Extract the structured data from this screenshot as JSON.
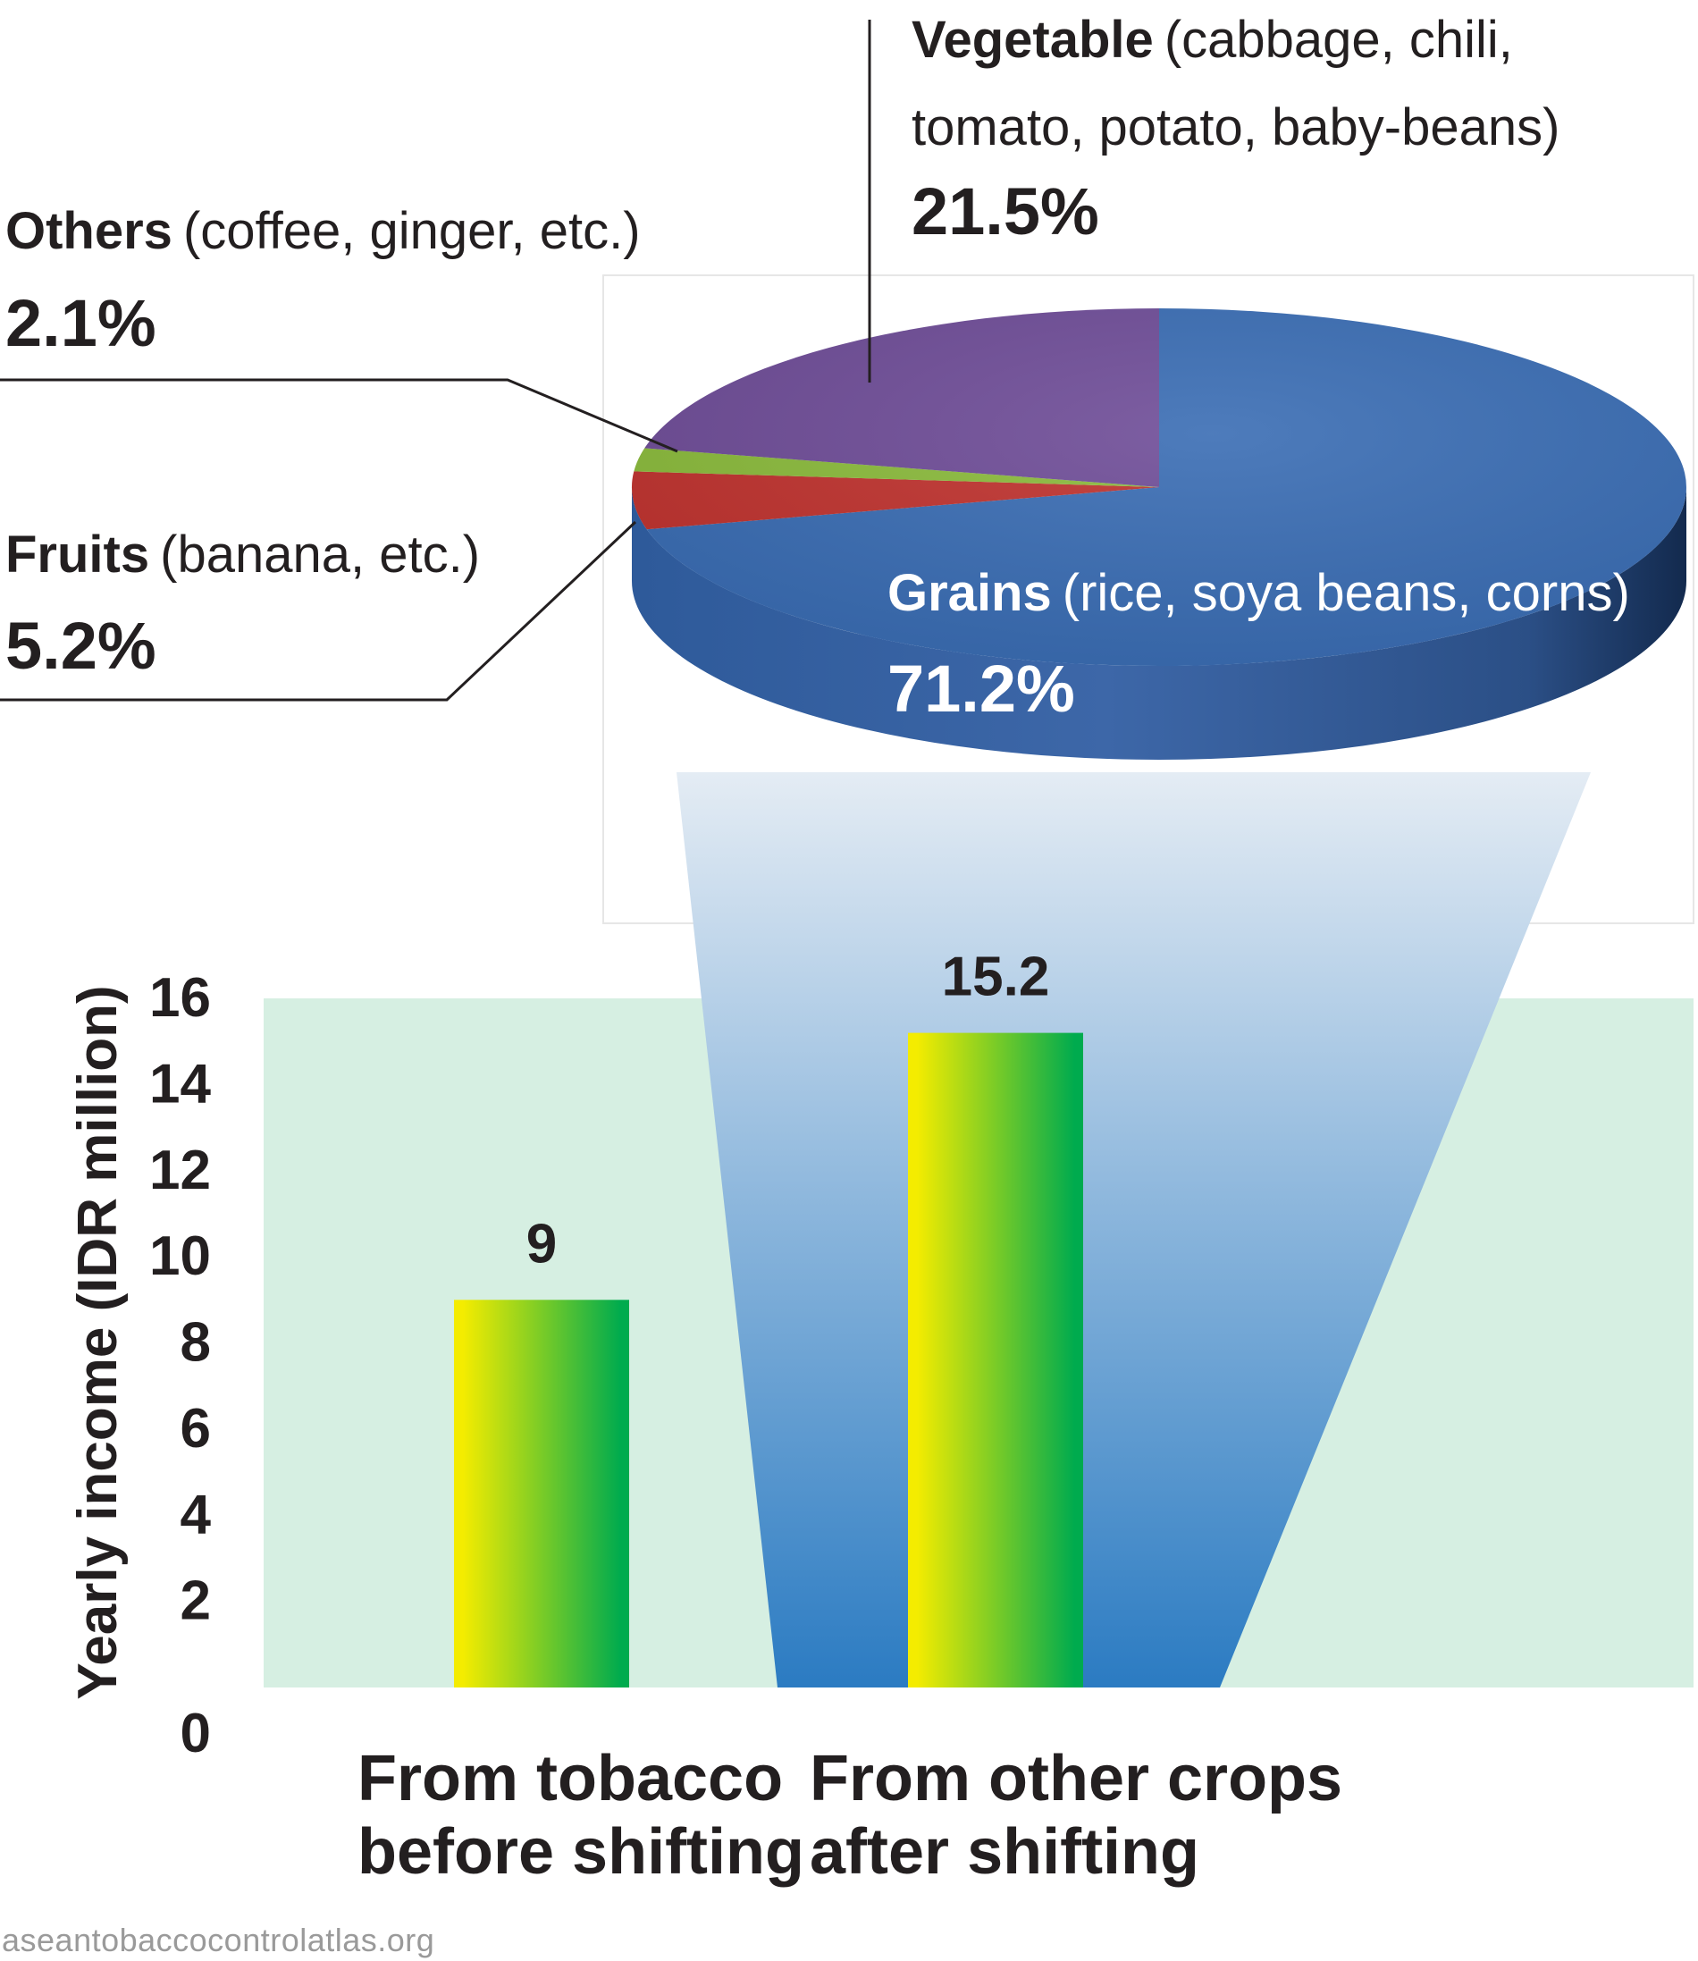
{
  "pie": {
    "type": "pie",
    "slices": [
      {
        "name": "Grains",
        "detail": "(rice, soya beans, corns)",
        "value": 71.2,
        "label": "71.2%",
        "color": "#3a6db4"
      },
      {
        "name": "Vegetable",
        "detail": "(cabbage, chili,",
        "detail2": "tomato, potato, baby-beans)",
        "value": 21.5,
        "label": "21.5%",
        "color": "#6f4d98"
      },
      {
        "name": "Others",
        "detail": "(coffee, ginger, etc.)",
        "value": 2.1,
        "label": "2.1%",
        "color": "#8bbb3c"
      },
      {
        "name": "Fruits",
        "detail": "(banana, etc.)",
        "value": 5.2,
        "label": "5.2%",
        "color": "#c0332f"
      }
    ]
  },
  "chart_data": {
    "type": "bar",
    "categories": [
      "From tobacco before shifting",
      "From other crops after shifting"
    ],
    "category_lines": [
      [
        "From tobacco",
        "before shifting"
      ],
      [
        "From other crops",
        "after shifting"
      ]
    ],
    "values": [
      9,
      15.2
    ],
    "value_labels": [
      "9",
      "15.2"
    ],
    "ylabel": "Yearly income (IDR million)",
    "ylim": [
      0,
      16
    ],
    "yticks": [
      0,
      2,
      4,
      6,
      8,
      10,
      12,
      14,
      16
    ],
    "colors": {
      "bar_start": "#f4ec00",
      "bar_end": "#00ab4e",
      "plot_bg": "#d6efe2",
      "funnel_top": "#e4ecf4",
      "funnel_bottom": "#2b7bc2"
    }
  },
  "footer": "aseantobaccocontrolatlas.org"
}
